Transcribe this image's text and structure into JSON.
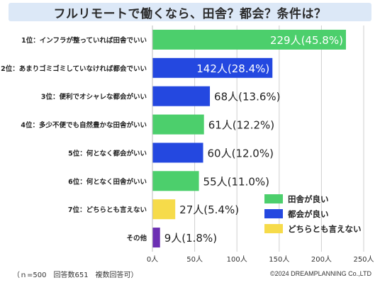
{
  "header": {
    "title": "フルリモートで働くなら、田舎？都会？条件は？"
  },
  "footer": {
    "note": "（ｎ=500　回答数651　複数回答可）",
    "copyright": "©2024 DREAMPLANNING Co.,LTD"
  },
  "colors": {
    "rural": "#4ccf6c",
    "urban": "#2448e0",
    "either": "#f6db4a",
    "other": "#6c2fb3"
  },
  "chart_data": {
    "type": "bar",
    "orientation": "horizontal",
    "xlim": [
      0,
      250
    ],
    "xticks": [
      "0人",
      "50人",
      "100人",
      "150人",
      "200人",
      "250人"
    ],
    "grid": true,
    "legend_position": "bottom-right",
    "legend": [
      {
        "key": "rural",
        "label": "田舎が良い"
      },
      {
        "key": "urban",
        "label": "都会が良い"
      },
      {
        "key": "either",
        "label": "どちらとも言えない"
      }
    ],
    "categories": [
      "1位：インフラが整っていれば田舎でいい",
      "2位：あまりゴミゴミしていなければ都会でいい",
      "3位：便利でオシャレな都会がいい",
      "4位：多少不便でも自然豊かな田舎がいい",
      "5位：何となく都会がいい",
      "6位：何となく田舎がいい",
      "7位：どちらとも言えない",
      "その他"
    ],
    "values": [
      229,
      142,
      68,
      61,
      60,
      55,
      27,
      9
    ],
    "value_labels": [
      "229人(45.8%)",
      "142人(28.4%)",
      "68人(13.6%)",
      "61人(12.2%)",
      "60人(12.0%)",
      "55人(11.0%)",
      "27人(5.4%)",
      "9人(1.8%)"
    ],
    "groups": [
      "rural",
      "urban",
      "urban",
      "rural",
      "urban",
      "rural",
      "either",
      "other"
    ]
  }
}
